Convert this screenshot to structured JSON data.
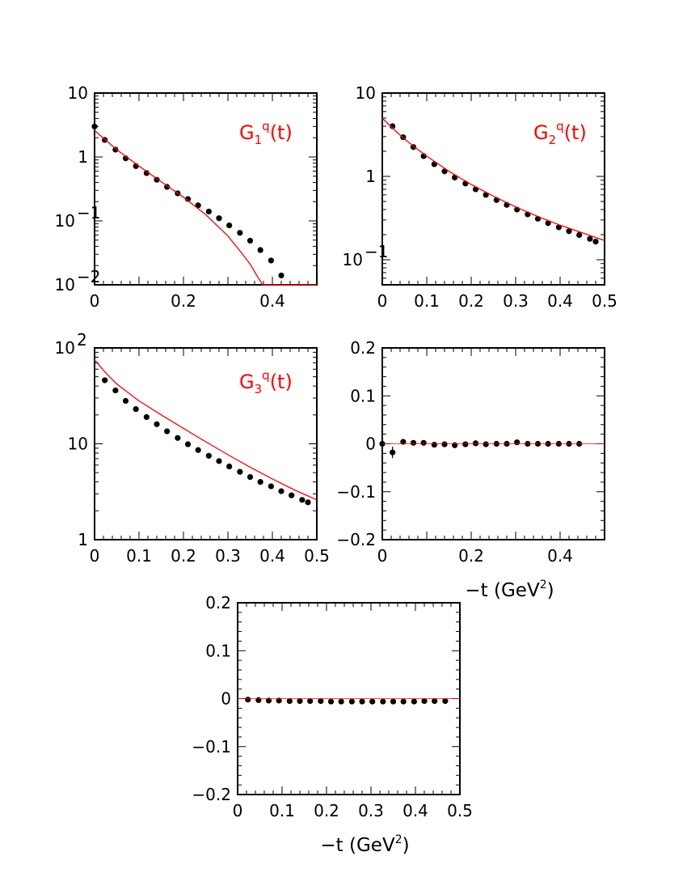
{
  "chart_data": [
    {
      "type": "scatter",
      "panel_label": {
        "base": "G",
        "sub": "1",
        "sup": "q",
        "arg": "(t)"
      },
      "xlim": [
        0,
        0.5
      ],
      "ylim": [
        0.01,
        10
      ],
      "yscale": "log",
      "xticks": [
        0,
        0.2,
        0.4
      ],
      "xtick_labels": [
        "0",
        "0.2",
        "0.4"
      ],
      "yticks": [
        {
          "value": 10,
          "base": "10",
          "exp": ""
        },
        {
          "value": 1,
          "base": "1",
          "exp": ""
        },
        {
          "value": 0.1,
          "base": "10",
          "exp": "−1"
        },
        {
          "value": 0.01,
          "base": "10",
          "exp": "−2"
        }
      ],
      "xlabel": "",
      "series": [
        {
          "kind": "points",
          "x": [
            0.0,
            0.023,
            0.047,
            0.07,
            0.093,
            0.117,
            0.14,
            0.163,
            0.187,
            0.21,
            0.233,
            0.257,
            0.28,
            0.303,
            0.327,
            0.35,
            0.373,
            0.397,
            0.42
          ],
          "y": [
            3.0,
            1.85,
            1.3,
            0.95,
            0.72,
            0.56,
            0.44,
            0.34,
            0.27,
            0.22,
            0.175,
            0.14,
            0.11,
            0.085,
            0.065,
            0.049,
            0.035,
            0.024,
            0.014
          ]
        },
        {
          "kind": "line",
          "x": [
            0.0,
            0.05,
            0.1,
            0.15,
            0.2,
            0.25,
            0.3,
            0.33,
            0.35,
            0.365,
            0.378,
            0.385,
            0.5
          ],
          "y": [
            2.6,
            1.3,
            0.72,
            0.41,
            0.235,
            0.125,
            0.058,
            0.032,
            0.021,
            0.014,
            0.01,
            0.01,
            0.01
          ]
        }
      ]
    },
    {
      "type": "scatter",
      "panel_label": {
        "base": "G",
        "sub": "2",
        "sup": "q",
        "arg": "(t)"
      },
      "xlim": [
        0,
        0.5
      ],
      "ylim": [
        0.05,
        10
      ],
      "yscale": "log",
      "xticks": [
        0,
        0.1,
        0.2,
        0.3,
        0.4,
        0.5
      ],
      "xtick_labels": [
        "0",
        "0.1",
        "0.2",
        "0.3",
        "0.4",
        "0.5"
      ],
      "yticks": [
        {
          "value": 10,
          "base": "10",
          "exp": ""
        },
        {
          "value": 1,
          "base": "1",
          "exp": ""
        },
        {
          "value": 0.1,
          "base": "10",
          "exp": "−1"
        }
      ],
      "xlabel": "",
      "series": [
        {
          "kind": "points",
          "x": [
            0.023,
            0.047,
            0.07,
            0.093,
            0.117,
            0.14,
            0.163,
            0.187,
            0.21,
            0.233,
            0.257,
            0.28,
            0.303,
            0.327,
            0.35,
            0.373,
            0.397,
            0.42,
            0.443,
            0.467,
            0.48
          ],
          "y": [
            4.0,
            2.95,
            2.25,
            1.75,
            1.4,
            1.15,
            0.97,
            0.82,
            0.7,
            0.6,
            0.52,
            0.455,
            0.4,
            0.35,
            0.31,
            0.275,
            0.245,
            0.22,
            0.198,
            0.178,
            0.165
          ]
        },
        {
          "kind": "line",
          "x": [
            0.0,
            0.025,
            0.05,
            0.075,
            0.1,
            0.15,
            0.2,
            0.25,
            0.3,
            0.35,
            0.4,
            0.45,
            0.5
          ],
          "y": [
            5.0,
            3.7,
            2.8,
            2.2,
            1.75,
            1.15,
            0.8,
            0.58,
            0.43,
            0.33,
            0.26,
            0.21,
            0.17
          ]
        }
      ]
    },
    {
      "type": "scatter",
      "panel_label": {
        "base": "G",
        "sub": "3",
        "sup": "q",
        "arg": "(t)"
      },
      "xlim": [
        0,
        0.5
      ],
      "ylim": [
        1,
        100
      ],
      "yscale": "log",
      "xticks": [
        0,
        0.1,
        0.2,
        0.3,
        0.4,
        0.5
      ],
      "xtick_labels": [
        "0",
        "0.1",
        "0.2",
        "0.3",
        "0.4",
        "0.5"
      ],
      "yticks": [
        {
          "value": 100,
          "base": "10",
          "exp": "2"
        },
        {
          "value": 10,
          "base": "10",
          "exp": ""
        },
        {
          "value": 1,
          "base": "1",
          "exp": ""
        }
      ],
      "xlabel": "",
      "series": [
        {
          "kind": "points",
          "x": [
            0.023,
            0.047,
            0.07,
            0.093,
            0.117,
            0.14,
            0.163,
            0.187,
            0.21,
            0.233,
            0.257,
            0.28,
            0.303,
            0.327,
            0.35,
            0.373,
            0.397,
            0.42,
            0.443,
            0.467,
            0.48
          ],
          "y": [
            46,
            36,
            28,
            23,
            19,
            16,
            13.5,
            11.5,
            9.9,
            8.6,
            7.5,
            6.6,
            5.8,
            5.1,
            4.5,
            4.0,
            3.6,
            3.2,
            2.9,
            2.6,
            2.45
          ]
        },
        {
          "kind": "line",
          "x": [
            0.0,
            0.025,
            0.05,
            0.1,
            0.15,
            0.2,
            0.25,
            0.3,
            0.35,
            0.4,
            0.45,
            0.5
          ],
          "y": [
            75,
            55,
            42,
            28,
            20,
            14.5,
            10.5,
            7.7,
            5.7,
            4.3,
            3.3,
            2.6
          ]
        }
      ]
    },
    {
      "type": "scatter",
      "xlim": [
        0,
        0.5
      ],
      "ylim": [
        -0.2,
        0.2
      ],
      "yscale": "linear",
      "xticks": [
        0,
        0.2,
        0.4
      ],
      "xtick_labels": [
        "0",
        "0.2",
        "0.4"
      ],
      "yticks": [
        {
          "value": 0.2,
          "base": "0.2",
          "exp": ""
        },
        {
          "value": 0.1,
          "base": "0.1",
          "exp": ""
        },
        {
          "value": 0,
          "base": "0",
          "exp": ""
        },
        {
          "value": -0.1,
          "base": "−0.1",
          "exp": ""
        },
        {
          "value": -0.2,
          "base": "−0.2",
          "exp": ""
        }
      ],
      "xlabel": {
        "text": "−t (GeV",
        "sup": "2",
        "close": ")"
      },
      "series": [
        {
          "kind": "points",
          "x": [
            0.0,
            0.023,
            0.047,
            0.07,
            0.093,
            0.117,
            0.14,
            0.163,
            0.187,
            0.21,
            0.233,
            0.257,
            0.28,
            0.303,
            0.327,
            0.35,
            0.373,
            0.397,
            0.42,
            0.443
          ],
          "y": [
            0.0,
            -0.018,
            0.004,
            0.002,
            0.002,
            -0.002,
            -0.001,
            -0.003,
            -0.001,
            0.001,
            -0.001,
            0.0,
            0.0,
            0.003,
            0.0,
            0.0,
            0.0,
            0.0,
            0.0,
            0.0
          ],
          "yerr": [
            0.004,
            0.012,
            0.006,
            0.003,
            0.003,
            0.002,
            0.002,
            0.002,
            0.002,
            0.002,
            0.002,
            0.002,
            0.002,
            0.002,
            0.002,
            0.002,
            0.002,
            0.002,
            0.002,
            0.002
          ]
        },
        {
          "kind": "hline",
          "y": 0
        }
      ]
    },
    {
      "type": "scatter",
      "xlim": [
        0,
        0.5
      ],
      "ylim": [
        -0.2,
        0.2
      ],
      "yscale": "linear",
      "xticks": [
        0,
        0.1,
        0.2,
        0.3,
        0.4,
        0.5
      ],
      "xtick_labels": [
        "0",
        "0.1",
        "0.2",
        "0.3",
        "0.4",
        "0.5"
      ],
      "yticks": [
        {
          "value": 0.2,
          "base": "0.2",
          "exp": ""
        },
        {
          "value": 0.1,
          "base": "0.1",
          "exp": ""
        },
        {
          "value": 0,
          "base": "0",
          "exp": ""
        },
        {
          "value": -0.1,
          "base": "−0.1",
          "exp": ""
        },
        {
          "value": -0.2,
          "base": "−0.2",
          "exp": ""
        }
      ],
      "xlabel": {
        "text": "−t (GeV",
        "sup": "2",
        "close": ")"
      },
      "series": [
        {
          "kind": "points",
          "x": [
            0.023,
            0.047,
            0.07,
            0.093,
            0.117,
            0.14,
            0.163,
            0.187,
            0.21,
            0.233,
            0.257,
            0.28,
            0.303,
            0.327,
            0.35,
            0.373,
            0.397,
            0.42,
            0.443,
            0.467
          ],
          "y": [
            -0.002,
            -0.003,
            -0.004,
            -0.004,
            -0.005,
            -0.005,
            -0.005,
            -0.005,
            -0.006,
            -0.006,
            -0.006,
            -0.006,
            -0.006,
            -0.006,
            -0.006,
            -0.006,
            -0.006,
            -0.005,
            -0.005,
            -0.005
          ]
        },
        {
          "kind": "hline",
          "y": 0
        }
      ]
    }
  ]
}
